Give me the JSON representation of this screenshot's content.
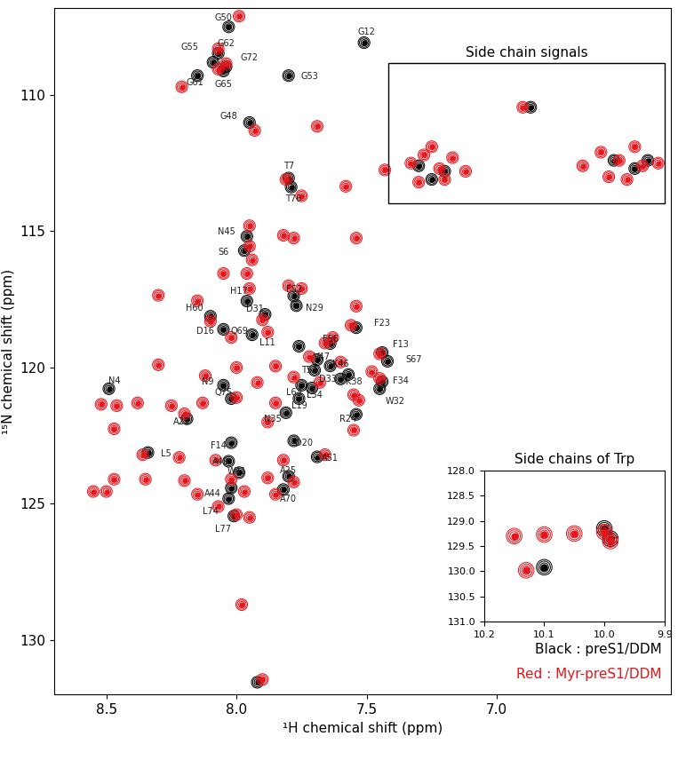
{
  "chart_data": [
    {
      "type": "scatter",
      "xlabel": "¹H chemical shift (ppm)",
      "ylabel": "¹⁵N chemical shift (ppm)",
      "xlim": [
        8.7,
        6.33
      ],
      "ylim": [
        132.0,
        106.8
      ],
      "xticks": [
        8.5,
        8.0,
        7.5,
        7.0
      ],
      "yticks": [
        110,
        115,
        120,
        125,
        130
      ],
      "legend": "lower right",
      "box_title": "Side chain signals",
      "series": [
        {
          "name": "Black : preS1/DDM",
          "color": "#000000",
          "marker": "o",
          "x": [
            8.03,
            7.51,
            8.09,
            8.07,
            8.04,
            8.05,
            8.15,
            7.8,
            7.95,
            7.8,
            7.79,
            7.96,
            7.97,
            7.96,
            7.78,
            7.77,
            7.89,
            8.1,
            7.54,
            8.05,
            7.94,
            7.44,
            7.64,
            7.76,
            7.69,
            7.64,
            7.7,
            7.6,
            7.57,
            7.44,
            7.45,
            8.49,
            8.05,
            8.02,
            7.75,
            7.71,
            7.76,
            8.19,
            7.81,
            7.54,
            8.34,
            8.02,
            7.78,
            7.69,
            8.03,
            7.99,
            7.8,
            8.02,
            7.82,
            8.03,
            8.01,
            7.42,
            7.92,
            7.3,
            7.2,
            7.25,
            6.87,
            6.55,
            6.47,
            6.42
          ],
          "y": [
            107.5,
            108.08,
            108.8,
            108.47,
            108.96,
            109.12,
            109.29,
            109.29,
            111.01,
            113.05,
            113.38,
            115.19,
            115.71,
            117.56,
            117.37,
            117.73,
            118.05,
            118.12,
            118.54,
            118.6,
            118.8,
            119.45,
            119.12,
            119.22,
            119.71,
            119.94,
            120.1,
            120.42,
            120.26,
            120.52,
            120.78,
            120.78,
            120.65,
            121.14,
            120.65,
            120.75,
            121.14,
            121.88,
            121.66,
            121.72,
            123.12,
            122.76,
            122.69,
            123.28,
            123.44,
            123.86,
            123.99,
            124.42,
            124.48,
            124.81,
            125.45,
            119.77,
            131.55,
            112.6,
            112.8,
            113.1,
            110.45,
            112.4,
            112.7,
            112.4
          ]
        },
        {
          "name": "Red : Myr-preS1/DDM",
          "color": "#e8141c",
          "marker": "o",
          "x": [
            7.99,
            8.07,
            8.04,
            8.07,
            8.21,
            7.69,
            7.93,
            7.43,
            7.58,
            7.75,
            7.81,
            7.95,
            7.82,
            7.78,
            7.54,
            7.95,
            7.94,
            8.05,
            7.96,
            7.95,
            7.8,
            7.75,
            7.54,
            7.56,
            8.15,
            8.3,
            8.1,
            7.9,
            8.02,
            7.88,
            7.63,
            7.66,
            7.45,
            7.72,
            7.6,
            7.45,
            7.48,
            7.85,
            8.0,
            8.3,
            8.12,
            7.92,
            7.78,
            7.68,
            7.55,
            8.52,
            8.46,
            8.38,
            8.25,
            8.13,
            8.0,
            7.85,
            7.53,
            8.47,
            8.2,
            7.88,
            7.55,
            8.36,
            8.22,
            8.08,
            7.82,
            7.66,
            8.47,
            8.35,
            8.2,
            8.02,
            7.88,
            7.78,
            8.55,
            8.5,
            8.15,
            7.97,
            7.85,
            8.0,
            7.95,
            8.07,
            7.98,
            7.9,
            7.33,
            7.28,
            7.22,
            7.17,
            7.3,
            7.2,
            7.12,
            7.25,
            6.9,
            6.67,
            6.6,
            6.53,
            6.47,
            6.44,
            6.5,
            6.38,
            6.57
          ],
          "y": [
            107.11,
            108.3,
            108.85,
            109.05,
            109.7,
            111.15,
            111.3,
            112.75,
            113.35,
            113.7,
            113.1,
            114.8,
            115.15,
            115.25,
            115.25,
            115.55,
            116.05,
            116.55,
            116.55,
            117.1,
            117.0,
            117.1,
            117.75,
            118.45,
            117.55,
            117.35,
            118.3,
            118.25,
            118.9,
            118.7,
            118.9,
            119.1,
            119.5,
            119.6,
            119.8,
            120.4,
            120.15,
            119.95,
            120.0,
            119.9,
            120.3,
            120.55,
            120.35,
            120.55,
            121.0,
            121.35,
            121.4,
            121.3,
            121.4,
            121.3,
            121.1,
            121.3,
            121.2,
            122.25,
            121.7,
            122.0,
            122.3,
            123.2,
            123.3,
            123.4,
            123.4,
            123.2,
            124.1,
            124.1,
            124.15,
            124.1,
            124.05,
            124.2,
            124.55,
            124.55,
            124.65,
            124.55,
            124.65,
            125.4,
            125.5,
            125.1,
            128.7,
            131.45,
            112.5,
            112.2,
            112.7,
            112.3,
            113.2,
            113.1,
            112.8,
            111.9,
            110.45,
            112.6,
            112.1,
            112.4,
            111.9,
            112.6,
            113.1,
            112.5,
            113.0
          ]
        }
      ],
      "annotations": [
        {
          "text": "G50",
          "x": 8.05,
          "y": 107.18
        },
        {
          "text": "G12",
          "x": 7.5,
          "y": 107.69
        },
        {
          "text": "G55",
          "x": 8.18,
          "y": 108.25
        },
        {
          "text": "G62",
          "x": 8.04,
          "y": 108.12
        },
        {
          "text": "G72",
          "x": 7.95,
          "y": 108.64
        },
        {
          "text": "G61",
          "x": 8.16,
          "y": 109.55
        },
        {
          "text": "G65",
          "x": 8.05,
          "y": 109.61
        },
        {
          "text": "G53",
          "x": 7.72,
          "y": 109.32
        },
        {
          "text": "G48",
          "x": 8.03,
          "y": 110.78
        },
        {
          "text": "T7",
          "x": 7.8,
          "y": 112.6
        },
        {
          "text": "T76",
          "x": 7.78,
          "y": 113.8
        },
        {
          "text": "N45",
          "x": 8.04,
          "y": 115.03
        },
        {
          "text": "S6",
          "x": 8.05,
          "y": 115.78
        },
        {
          "text": "H17",
          "x": 7.99,
          "y": 117.21
        },
        {
          "text": "F52",
          "x": 7.78,
          "y": 117.14
        },
        {
          "text": "N29",
          "x": 7.7,
          "y": 117.82
        },
        {
          "text": "F23",
          "x": 7.44,
          "y": 118.38
        },
        {
          "text": "D31",
          "x": 7.93,
          "y": 117.86
        },
        {
          "text": "H60",
          "x": 8.16,
          "y": 117.82
        },
        {
          "text": "F13",
          "x": 7.37,
          "y": 119.16
        },
        {
          "text": "S67",
          "x": 7.32,
          "y": 119.71
        },
        {
          "text": "D16",
          "x": 8.12,
          "y": 118.67
        },
        {
          "text": "Q69",
          "x": 7.99,
          "y": 118.67
        },
        {
          "text": "F56",
          "x": 7.64,
          "y": 118.96
        },
        {
          "text": "L11",
          "x": 7.88,
          "y": 119.09
        },
        {
          "text": "V47",
          "x": 7.67,
          "y": 119.61
        },
        {
          "text": "K46",
          "x": 7.6,
          "y": 119.87
        },
        {
          "text": "T57",
          "x": 7.72,
          "y": 120.1
        },
        {
          "text": "D33",
          "x": 7.65,
          "y": 120.42
        },
        {
          "text": "K38",
          "x": 7.55,
          "y": 120.52
        },
        {
          "text": "F34",
          "x": 7.37,
          "y": 120.49
        },
        {
          "text": "W32",
          "x": 7.39,
          "y": 121.23
        },
        {
          "text": "N4",
          "x": 8.47,
          "y": 120.49
        },
        {
          "text": "N9",
          "x": 8.11,
          "y": 120.52
        },
        {
          "text": "Q75",
          "x": 8.05,
          "y": 120.91
        },
        {
          "text": "L63",
          "x": 7.78,
          "y": 120.91
        },
        {
          "text": "L54",
          "x": 7.7,
          "y": 121.01
        },
        {
          "text": "L19",
          "x": 7.76,
          "y": 121.4
        },
        {
          "text": "A22",
          "x": 8.21,
          "y": 121.98
        },
        {
          "text": "N35",
          "x": 7.86,
          "y": 121.88
        },
        {
          "text": "R24",
          "x": 7.57,
          "y": 121.88
        },
        {
          "text": "L5",
          "x": 8.27,
          "y": 123.15
        },
        {
          "text": "F14",
          "x": 8.07,
          "y": 122.86
        },
        {
          "text": "D20",
          "x": 7.74,
          "y": 122.76
        },
        {
          "text": "A51",
          "x": 7.64,
          "y": 123.34
        },
        {
          "text": "A49",
          "x": 8.06,
          "y": 123.47
        },
        {
          "text": "W41",
          "x": 8.0,
          "y": 123.83
        },
        {
          "text": "A25",
          "x": 7.8,
          "y": 123.77
        },
        {
          "text": "A44",
          "x": 8.09,
          "y": 124.64
        },
        {
          "text": "A70",
          "x": 7.8,
          "y": 124.81
        },
        {
          "text": "L74",
          "x": 8.1,
          "y": 125.29
        },
        {
          "text": "L77",
          "x": 8.05,
          "y": 125.94
        }
      ]
    },
    {
      "type": "scatter",
      "title": "Side chains of Trp",
      "xlim": [
        10.2,
        9.9
      ],
      "ylim": [
        131.0,
        128.0
      ],
      "xticks": [
        10.2,
        10.1,
        10.0,
        9.9
      ],
      "yticks": [
        128.0,
        128.5,
        129.0,
        129.5,
        130.0,
        130.5,
        131.0
      ],
      "series": [
        {
          "color": "#000000",
          "marker": "o",
          "x": [
            10.0,
            9.99,
            10.1
          ],
          "y": [
            129.15,
            129.35,
            129.92
          ]
        },
        {
          "color": "#e8141c",
          "marker": "o",
          "x": [
            10.15,
            10.1,
            10.05,
            10.0,
            9.99,
            10.13
          ],
          "y": [
            129.3,
            129.27,
            129.25,
            129.22,
            129.4,
            129.98
          ]
        }
      ]
    }
  ]
}
